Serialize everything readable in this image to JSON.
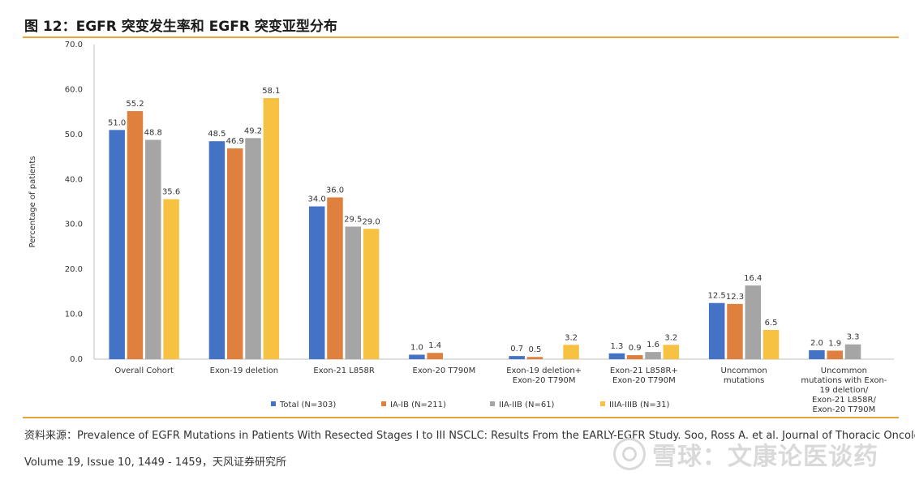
{
  "figure": {
    "title": "图 12：EGFR 突变发生率和 EGFR 突变亚型分布",
    "source_line1": "资料来源：Prevalence of EGFR Mutations in Patients With Resected Stages I to III NSCLC: Results From the EARLY-EGFR Study. Soo, Ross A. et al. Journal of Thoracic Oncology,",
    "source_line2": "Volume 19, Issue 10, 1449 - 1459，天风证券研究所",
    "watermark": "雪球：文康论医谈药"
  },
  "chart_data": {
    "type": "bar",
    "ylabel": "Percentage of patients",
    "xlabel": "",
    "ylim": [
      0,
      70
    ],
    "yticks": [
      "0.0",
      "10.0",
      "20.0",
      "30.0",
      "40.0",
      "50.0",
      "60.0",
      "70.0"
    ],
    "grid": false,
    "legend_position": "bottom",
    "categories": [
      [
        "Overall Cohort"
      ],
      [
        "Exon-19 deletion"
      ],
      [
        "Exon-21 L858R"
      ],
      [
        "Exon-20 T790M"
      ],
      [
        "Exon-19 deletion+",
        "Exon-20 T790M"
      ],
      [
        "Exon-21 L858R+",
        "Exon-20 T790M"
      ],
      [
        "Uncommon",
        "mutations"
      ],
      [
        "Uncommon",
        "mutations with Exon-",
        "19 deletion/",
        "Exon-21 L858R/",
        "Exon-20 T790M"
      ]
    ],
    "series": [
      {
        "name": "Total (N=303)",
        "color": "#4472c4",
        "values": [
          51.0,
          48.5,
          34.0,
          1.0,
          0.7,
          1.3,
          12.5,
          2.0
        ],
        "labels": [
          "51.0",
          "48.5",
          "34.0",
          "1.0",
          "0.7",
          "1.3",
          "12.5",
          "2.0"
        ]
      },
      {
        "name": "IA-IB (N=211)",
        "color": "#e0803f",
        "values": [
          55.2,
          46.9,
          36.0,
          1.4,
          0.5,
          0.9,
          12.3,
          1.9
        ],
        "labels": [
          "55.2",
          "46.9",
          "36.0",
          "1.4",
          "0.5",
          "0.9",
          "12.3",
          "1.9"
        ]
      },
      {
        "name": "IIA-IIB (N=61)",
        "color": "#a5a5a5",
        "values": [
          48.8,
          49.2,
          29.5,
          null,
          null,
          1.6,
          16.4,
          3.3
        ],
        "labels": [
          "48.8",
          "49.2",
          "29.5",
          null,
          null,
          "1.6",
          "16.4",
          "3.3"
        ]
      },
      {
        "name": "IIIA-IIIB (N=31)",
        "color": "#f7c142",
        "values": [
          35.6,
          58.1,
          29.0,
          null,
          3.2,
          3.2,
          6.5,
          null
        ],
        "labels": [
          "35.6",
          "58.1",
          "29.0",
          null,
          "3.2",
          "3.2",
          "6.5",
          null
        ]
      }
    ]
  }
}
